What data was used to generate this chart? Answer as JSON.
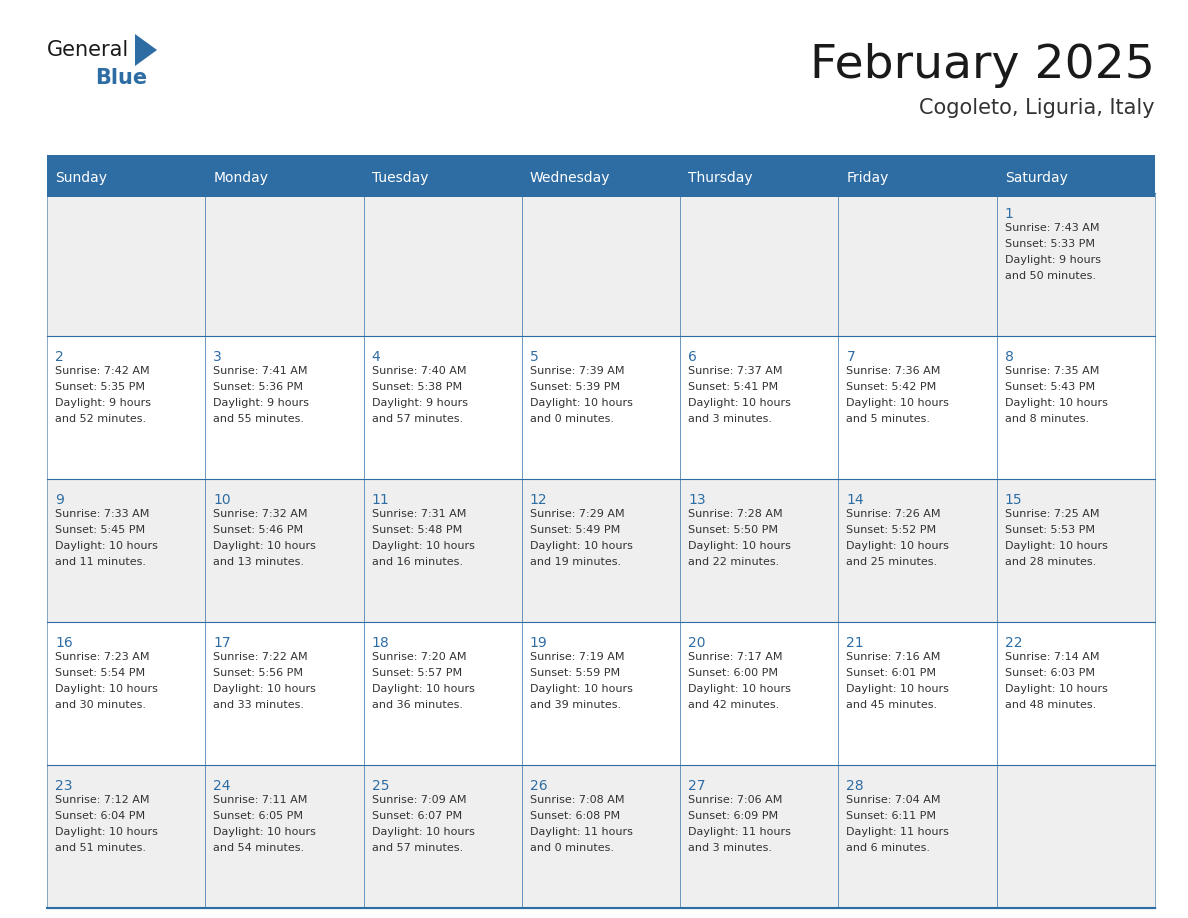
{
  "title": "February 2025",
  "subtitle": "Cogoleto, Liguria, Italy",
  "header_color": "#2E6DA4",
  "header_text_color": "#FFFFFF",
  "cell_bg_even": "#EFEFEF",
  "cell_bg_odd": "#FFFFFF",
  "border_color": "#2E6DA4",
  "title_color": "#1a1a1a",
  "subtitle_color": "#333333",
  "day_text_color": "#2E6DA4",
  "info_text_color": "#333333",
  "days_of_week": [
    "Sunday",
    "Monday",
    "Tuesday",
    "Wednesday",
    "Thursday",
    "Friday",
    "Saturday"
  ],
  "calendar_data": [
    [
      null,
      null,
      null,
      null,
      null,
      null,
      {
        "day": 1,
        "sunrise": "7:43 AM",
        "sunset": "5:33 PM",
        "daylight": "9 hours\nand 50 minutes."
      }
    ],
    [
      {
        "day": 2,
        "sunrise": "7:42 AM",
        "sunset": "5:35 PM",
        "daylight": "9 hours\nand 52 minutes."
      },
      {
        "day": 3,
        "sunrise": "7:41 AM",
        "sunset": "5:36 PM",
        "daylight": "9 hours\nand 55 minutes."
      },
      {
        "day": 4,
        "sunrise": "7:40 AM",
        "sunset": "5:38 PM",
        "daylight": "9 hours\nand 57 minutes."
      },
      {
        "day": 5,
        "sunrise": "7:39 AM",
        "sunset": "5:39 PM",
        "daylight": "10 hours\nand 0 minutes."
      },
      {
        "day": 6,
        "sunrise": "7:37 AM",
        "sunset": "5:41 PM",
        "daylight": "10 hours\nand 3 minutes."
      },
      {
        "day": 7,
        "sunrise": "7:36 AM",
        "sunset": "5:42 PM",
        "daylight": "10 hours\nand 5 minutes."
      },
      {
        "day": 8,
        "sunrise": "7:35 AM",
        "sunset": "5:43 PM",
        "daylight": "10 hours\nand 8 minutes."
      }
    ],
    [
      {
        "day": 9,
        "sunrise": "7:33 AM",
        "sunset": "5:45 PM",
        "daylight": "10 hours\nand 11 minutes."
      },
      {
        "day": 10,
        "sunrise": "7:32 AM",
        "sunset": "5:46 PM",
        "daylight": "10 hours\nand 13 minutes."
      },
      {
        "day": 11,
        "sunrise": "7:31 AM",
        "sunset": "5:48 PM",
        "daylight": "10 hours\nand 16 minutes."
      },
      {
        "day": 12,
        "sunrise": "7:29 AM",
        "sunset": "5:49 PM",
        "daylight": "10 hours\nand 19 minutes."
      },
      {
        "day": 13,
        "sunrise": "7:28 AM",
        "sunset": "5:50 PM",
        "daylight": "10 hours\nand 22 minutes."
      },
      {
        "day": 14,
        "sunrise": "7:26 AM",
        "sunset": "5:52 PM",
        "daylight": "10 hours\nand 25 minutes."
      },
      {
        "day": 15,
        "sunrise": "7:25 AM",
        "sunset": "5:53 PM",
        "daylight": "10 hours\nand 28 minutes."
      }
    ],
    [
      {
        "day": 16,
        "sunrise": "7:23 AM",
        "sunset": "5:54 PM",
        "daylight": "10 hours\nand 30 minutes."
      },
      {
        "day": 17,
        "sunrise": "7:22 AM",
        "sunset": "5:56 PM",
        "daylight": "10 hours\nand 33 minutes."
      },
      {
        "day": 18,
        "sunrise": "7:20 AM",
        "sunset": "5:57 PM",
        "daylight": "10 hours\nand 36 minutes."
      },
      {
        "day": 19,
        "sunrise": "7:19 AM",
        "sunset": "5:59 PM",
        "daylight": "10 hours\nand 39 minutes."
      },
      {
        "day": 20,
        "sunrise": "7:17 AM",
        "sunset": "6:00 PM",
        "daylight": "10 hours\nand 42 minutes."
      },
      {
        "day": 21,
        "sunrise": "7:16 AM",
        "sunset": "6:01 PM",
        "daylight": "10 hours\nand 45 minutes."
      },
      {
        "day": 22,
        "sunrise": "7:14 AM",
        "sunset": "6:03 PM",
        "daylight": "10 hours\nand 48 minutes."
      }
    ],
    [
      {
        "day": 23,
        "sunrise": "7:12 AM",
        "sunset": "6:04 PM",
        "daylight": "10 hours\nand 51 minutes."
      },
      {
        "day": 24,
        "sunrise": "7:11 AM",
        "sunset": "6:05 PM",
        "daylight": "10 hours\nand 54 minutes."
      },
      {
        "day": 25,
        "sunrise": "7:09 AM",
        "sunset": "6:07 PM",
        "daylight": "10 hours\nand 57 minutes."
      },
      {
        "day": 26,
        "sunrise": "7:08 AM",
        "sunset": "6:08 PM",
        "daylight": "11 hours\nand 0 minutes."
      },
      {
        "day": 27,
        "sunrise": "7:06 AM",
        "sunset": "6:09 PM",
        "daylight": "11 hours\nand 3 minutes."
      },
      {
        "day": 28,
        "sunrise": "7:04 AM",
        "sunset": "6:11 PM",
        "daylight": "11 hours\nand 6 minutes."
      },
      null
    ]
  ],
  "logo_general_color": "#1a1a1a",
  "logo_blue_color": "#2E6DA4",
  "logo_triangle_color": "#2E6DA4"
}
